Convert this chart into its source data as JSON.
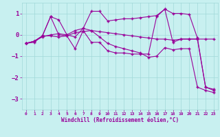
{
  "background_color": "#c8f0f0",
  "grid_color": "#a0d8d8",
  "line_color": "#990099",
  "xlim": [
    -0.5,
    23.5
  ],
  "ylim": [
    -3.5,
    1.5
  ],
  "yticks": [
    -3,
    -2,
    -1,
    0,
    1
  ],
  "xticks": [
    0,
    1,
    2,
    3,
    4,
    5,
    6,
    7,
    8,
    9,
    10,
    11,
    12,
    13,
    14,
    15,
    16,
    17,
    18,
    19,
    20,
    21,
    22,
    23
  ],
  "xlabel": "Windchill (Refroidissement éolien,°C)",
  "lines": [
    {
      "x": [
        0,
        1,
        2,
        3,
        4,
        5,
        6,
        7,
        8,
        9,
        10,
        11,
        12,
        13,
        14,
        15,
        16,
        17,
        18,
        19,
        20,
        21,
        22,
        23
      ],
      "y": [
        -0.4,
        -0.35,
        -0.05,
        0.85,
        0.7,
        0.0,
        0.2,
        0.3,
        1.1,
        1.1,
        0.65,
        0.7,
        0.75,
        0.75,
        0.8,
        0.85,
        0.9,
        1.2,
        1.0,
        1.0,
        0.95,
        -0.15,
        -2.45,
        -2.6
      ]
    },
    {
      "x": [
        0,
        1,
        2,
        3,
        4,
        5,
        6,
        7,
        8,
        9,
        10,
        11,
        12,
        13,
        14,
        15,
        16,
        17,
        18,
        19,
        20,
        21,
        22,
        23
      ],
      "y": [
        -0.4,
        -0.3,
        -0.05,
        0.85,
        0.0,
        -0.05,
        -0.65,
        0.2,
        -0.35,
        -0.35,
        -0.75,
        -0.85,
        -0.85,
        -0.9,
        -0.9,
        -0.9,
        0.85,
        1.2,
        -0.35,
        -0.2,
        -0.2,
        -0.2,
        -2.45,
        -2.55
      ]
    },
    {
      "x": [
        0,
        1,
        2,
        3,
        4,
        5,
        6,
        7,
        8,
        9,
        10,
        11,
        12,
        13,
        14,
        15,
        16,
        17,
        18,
        19,
        20,
        21,
        22,
        23
      ],
      "y": [
        -0.4,
        -0.3,
        -0.05,
        -0.05,
        -0.1,
        -0.05,
        0.1,
        0.15,
        0.2,
        0.15,
        0.1,
        0.05,
        0.0,
        -0.05,
        -0.1,
        -0.15,
        -0.2,
        -0.2,
        -0.25,
        -0.2,
        -0.2,
        -0.2,
        -0.2,
        -0.2
      ]
    },
    {
      "x": [
        0,
        1,
        2,
        3,
        4,
        5,
        6,
        7,
        8,
        9,
        10,
        11,
        12,
        13,
        14,
        15,
        16,
        17,
        18,
        19,
        20,
        21,
        22,
        23
      ],
      "y": [
        -0.4,
        -0.3,
        -0.1,
        0.0,
        0.05,
        0.0,
        -0.1,
        0.3,
        0.2,
        -0.1,
        -0.4,
        -0.55,
        -0.65,
        -0.75,
        -0.85,
        -1.05,
        -1.0,
        -0.6,
        -0.7,
        -0.65,
        -0.65,
        -2.45,
        -2.6,
        -2.7
      ]
    }
  ]
}
